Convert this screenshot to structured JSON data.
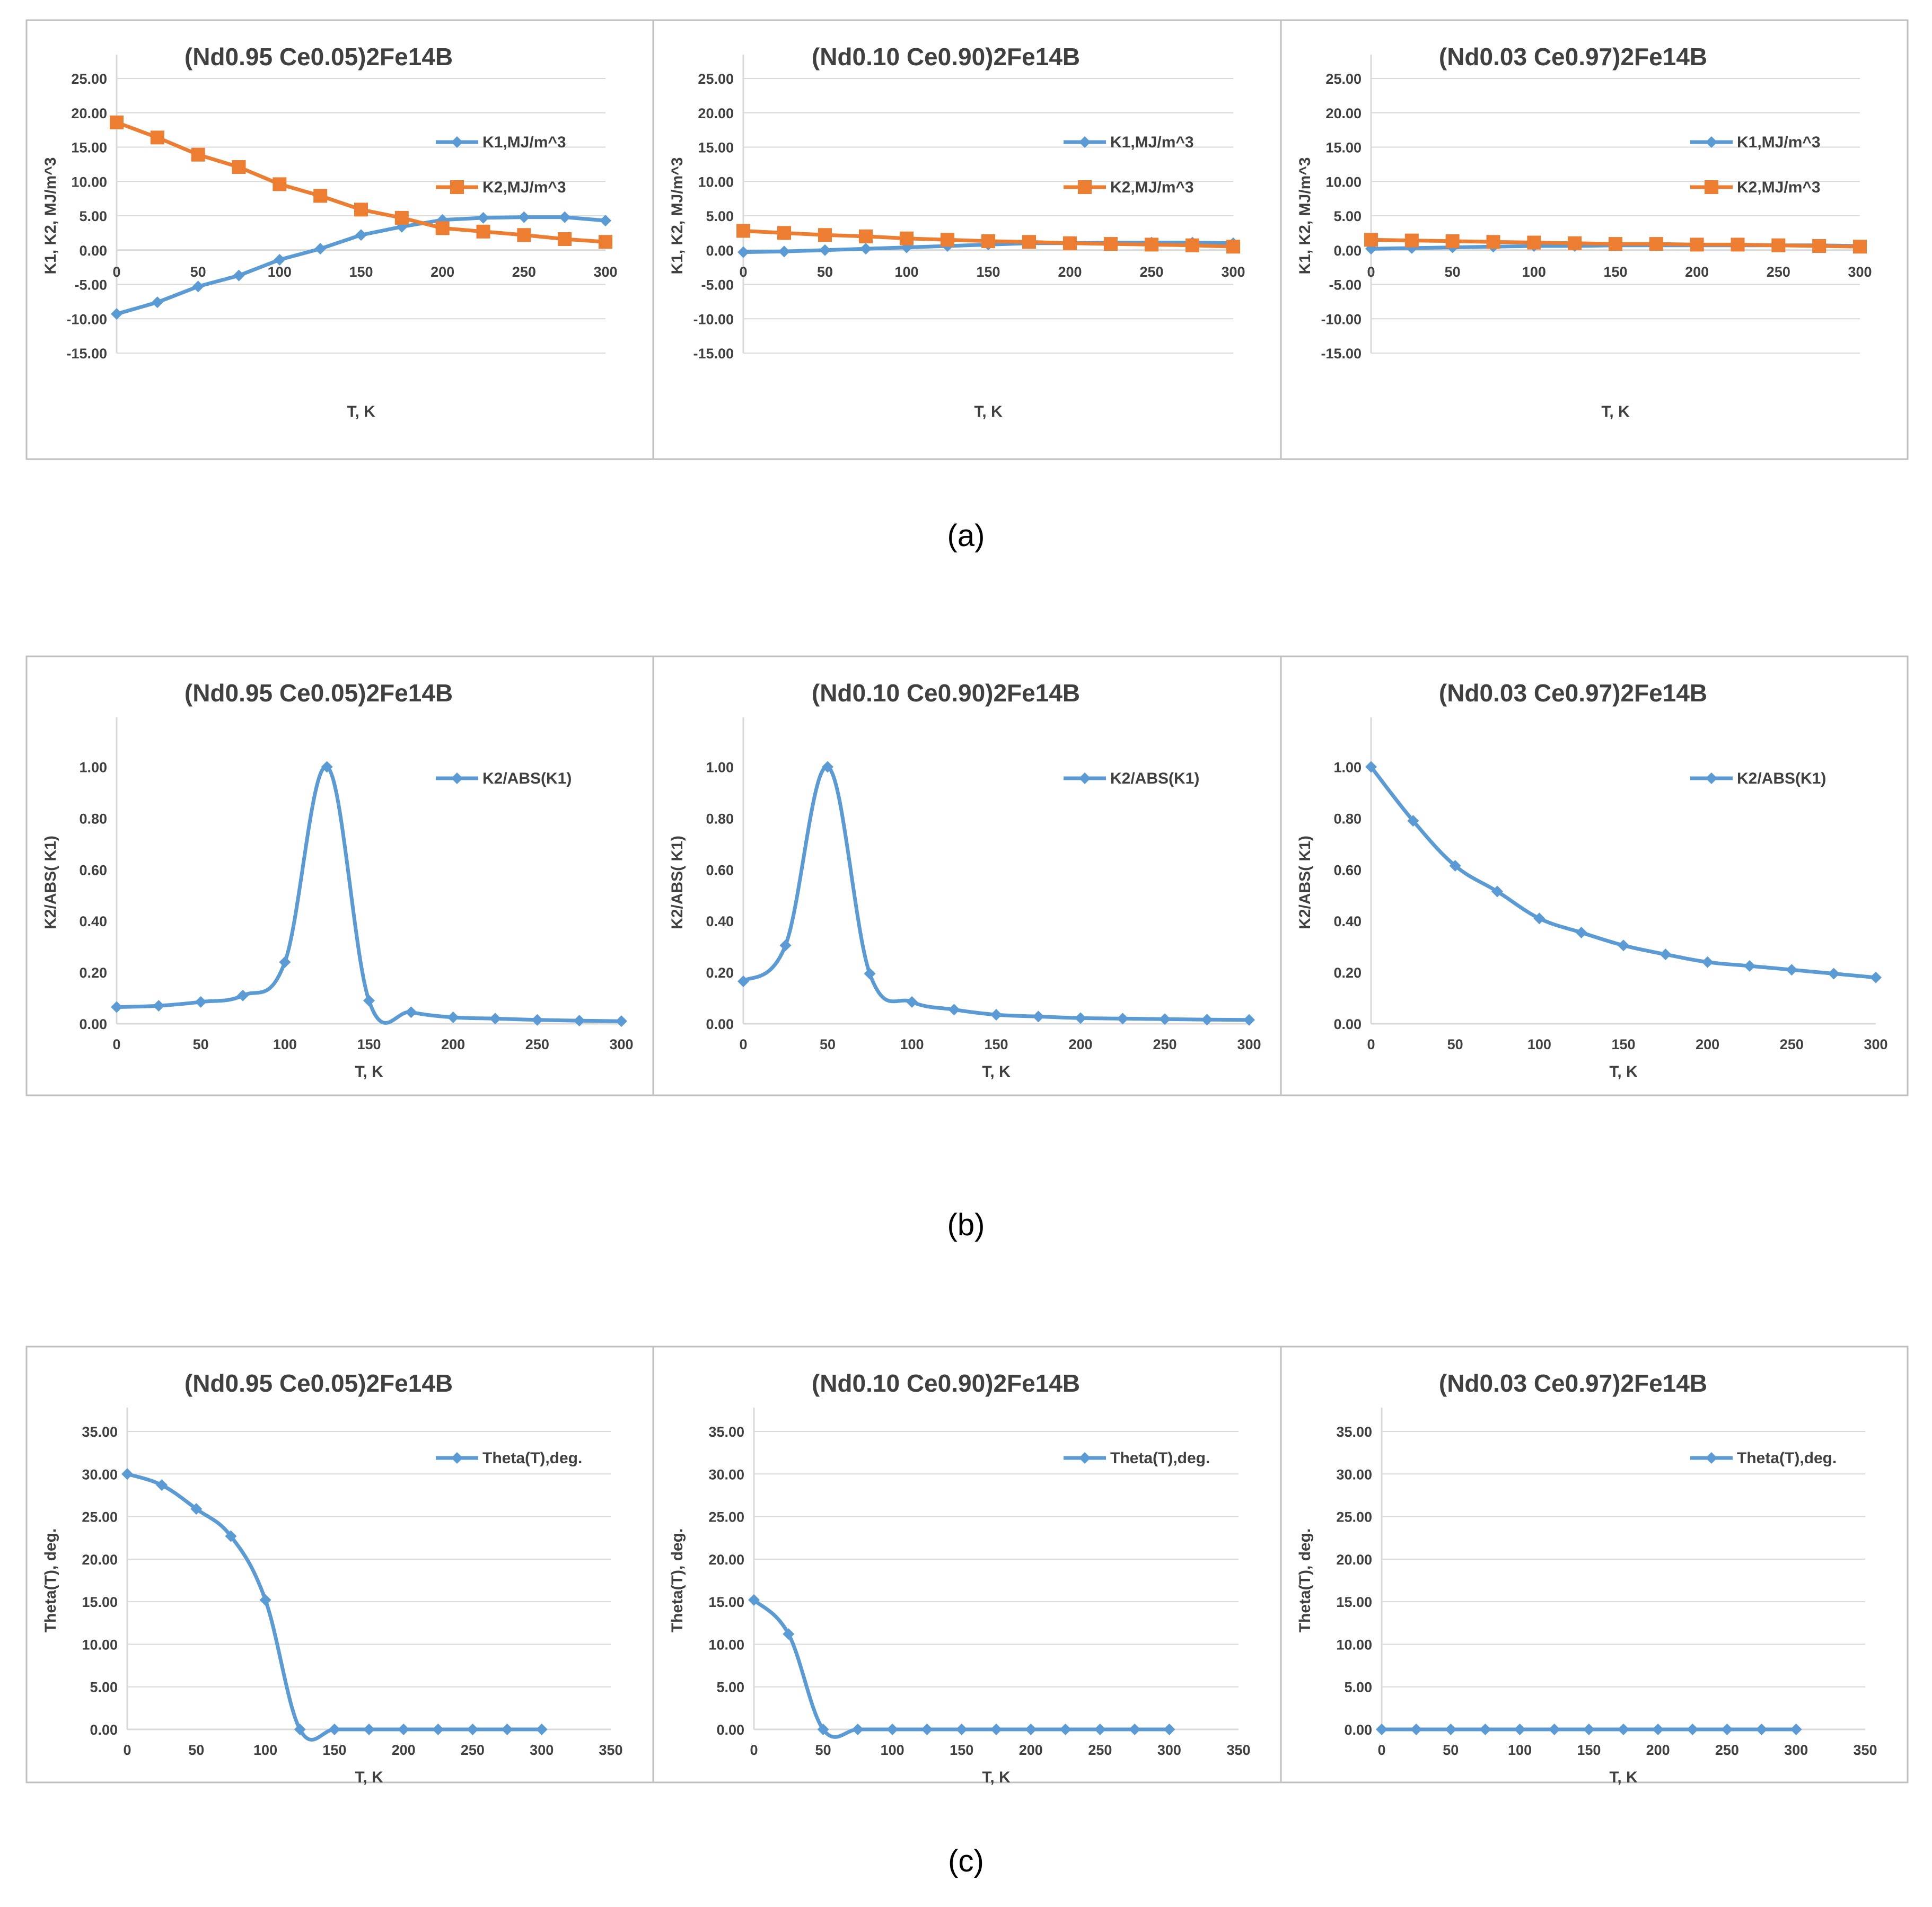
{
  "colors": {
    "k1": "#5B9BD5",
    "k2": "#ED7D31",
    "grid": "#D9D9D9",
    "frame": "#BFBFBF",
    "text": "#404040"
  },
  "captions": [
    "(a)",
    "(b)",
    "(c)"
  ],
  "chart_data": [
    {
      "row": 0,
      "col": 0,
      "type": "line",
      "title": "(Nd0.95 Ce0.05)2Fe14B",
      "xlabel": "T, K",
      "ylabel": "K1, K2, MJ/m^3",
      "ylim": [
        -15,
        25
      ],
      "yticks": [
        "-15.00",
        "-10.00",
        "-5.00",
        "0.00",
        "5.00",
        "10.00",
        "15.00",
        "20.00",
        "25.00"
      ],
      "xlim": [
        0,
        300
      ],
      "xticks": [
        "0",
        "50",
        "100",
        "150",
        "200",
        "250",
        "300"
      ],
      "x": [
        0,
        25,
        50,
        75,
        100,
        125,
        150,
        175,
        200,
        225,
        250,
        275,
        300
      ],
      "series": [
        {
          "name": "K1,MJ/m^3",
          "values": [
            -9.3,
            -7.6,
            -5.3,
            -3.7,
            -1.4,
            0.2,
            2.2,
            3.4,
            4.4,
            4.7,
            4.8,
            4.8,
            4.3
          ]
        },
        {
          "name": "K2,MJ/m^3",
          "values": [
            18.6,
            16.4,
            13.9,
            12.1,
            9.6,
            7.9,
            5.9,
            4.7,
            3.2,
            2.7,
            2.2,
            1.6,
            1.2
          ]
        }
      ],
      "legend": "top-right",
      "grid": true
    },
    {
      "row": 0,
      "col": 1,
      "type": "line",
      "title": "(Nd0.10 Ce0.90)2Fe14B",
      "xlabel": "T, K",
      "ylabel": "K1, K2, MJ/m^3",
      "ylim": [
        -15,
        25
      ],
      "yticks": [
        "-15.00",
        "-10.00",
        "-5.00",
        "0.00",
        "5.00",
        "10.00",
        "15.00",
        "20.00",
        "25.00"
      ],
      "xlim": [
        0,
        300
      ],
      "xticks": [
        "0",
        "50",
        "100",
        "150",
        "200",
        "250",
        "300"
      ],
      "x": [
        0,
        25,
        50,
        75,
        100,
        125,
        150,
        175,
        200,
        225,
        250,
        275,
        300
      ],
      "series": [
        {
          "name": "K1,MJ/m^3",
          "values": [
            -0.3,
            -0.2,
            0.0,
            0.2,
            0.4,
            0.6,
            0.8,
            1.0,
            1.0,
            1.1,
            1.1,
            1.1,
            1.0
          ]
        },
        {
          "name": "K2,MJ/m^3",
          "values": [
            2.8,
            2.5,
            2.2,
            2.0,
            1.7,
            1.5,
            1.3,
            1.2,
            1.0,
            0.9,
            0.8,
            0.7,
            0.5
          ]
        }
      ],
      "legend": "top-right",
      "grid": true
    },
    {
      "row": 0,
      "col": 2,
      "type": "line",
      "title": "(Nd0.03 Ce0.97)2Fe14B",
      "xlabel": "T, K",
      "ylabel": "K1, K2, MJ/m^3",
      "ylim": [
        -15,
        25
      ],
      "yticks": [
        "-15.00",
        "-10.00",
        "-5.00",
        "0.00",
        "5.00",
        "10.00",
        "15.00",
        "20.00",
        "25.00"
      ],
      "xlim": [
        0,
        300
      ],
      "xticks": [
        "0",
        "50",
        "100",
        "150",
        "200",
        "250",
        "300"
      ],
      "x": [
        0,
        25,
        50,
        75,
        100,
        125,
        150,
        175,
        200,
        225,
        250,
        275,
        300
      ],
      "series": [
        {
          "name": "K1,MJ/m^3",
          "values": [
            0.2,
            0.3,
            0.4,
            0.5,
            0.6,
            0.6,
            0.7,
            0.7,
            0.7,
            0.7,
            0.7,
            0.7,
            0.6
          ]
        },
        {
          "name": "K2,MJ/m^3",
          "values": [
            1.5,
            1.4,
            1.3,
            1.2,
            1.1,
            1.0,
            0.9,
            0.9,
            0.8,
            0.8,
            0.7,
            0.6,
            0.5
          ]
        }
      ],
      "legend": "top-right",
      "grid": true
    },
    {
      "row": 1,
      "col": 0,
      "type": "line",
      "title": "(Nd0.95 Ce0.05)2Fe14B",
      "xlabel": "T, K",
      "ylabel": "K2/ABS( K1)",
      "ylim": [
        0,
        1.1
      ],
      "yticks": [
        "0.00",
        "0.20",
        "0.40",
        "0.60",
        "0.80",
        "1.00"
      ],
      "xlim": [
        0,
        300
      ],
      "xticks": [
        "0",
        "50",
        "100",
        "150",
        "200",
        "250",
        "300"
      ],
      "x": [
        0,
        25,
        50,
        75,
        100,
        125,
        150,
        175,
        200,
        225,
        250,
        275,
        300
      ],
      "series": [
        {
          "name": "K2/ABS(K1)",
          "values": [
            0.065,
            0.07,
            0.085,
            0.11,
            0.24,
            1.0,
            0.09,
            0.045,
            0.025,
            0.02,
            0.015,
            0.012,
            0.01
          ]
        }
      ],
      "legend": "top-right",
      "grid": false
    },
    {
      "row": 1,
      "col": 1,
      "type": "line",
      "title": "(Nd0.10 Ce0.90)2Fe14B",
      "xlabel": "T, K",
      "ylabel": "K2/ABS( K1)",
      "ylim": [
        0,
        1.1
      ],
      "yticks": [
        "0.00",
        "0.20",
        "0.40",
        "0.60",
        "0.80",
        "1.00"
      ],
      "xlim": [
        0,
        300
      ],
      "xticks": [
        "0",
        "50",
        "100",
        "150",
        "200",
        "250",
        "300"
      ],
      "x": [
        0,
        25,
        50,
        75,
        100,
        125,
        150,
        175,
        200,
        225,
        250,
        275,
        300
      ],
      "series": [
        {
          "name": "K2/ABS(K1)",
          "values": [
            0.165,
            0.305,
            1.0,
            0.195,
            0.085,
            0.055,
            0.035,
            0.028,
            0.022,
            0.02,
            0.018,
            0.016,
            0.015
          ]
        }
      ],
      "legend": "top-right",
      "grid": false
    },
    {
      "row": 1,
      "col": 2,
      "type": "line",
      "title": "(Nd0.03 Ce0.97)2Fe14B",
      "xlabel": "T, K",
      "ylabel": "K2/ABS( K1)",
      "ylim": [
        0,
        1.1
      ],
      "yticks": [
        "0.00",
        "0.20",
        "0.40",
        "0.60",
        "0.80",
        "1.00"
      ],
      "xlim": [
        0,
        300
      ],
      "xticks": [
        "0",
        "50",
        "100",
        "150",
        "200",
        "250",
        "300"
      ],
      "x": [
        0,
        25,
        50,
        75,
        100,
        125,
        150,
        175,
        200,
        225,
        250,
        275,
        300
      ],
      "series": [
        {
          "name": "K2/ABS(K1)",
          "values": [
            1.0,
            0.79,
            0.615,
            0.515,
            0.41,
            0.355,
            0.305,
            0.27,
            0.24,
            0.225,
            0.21,
            0.195,
            0.18
          ]
        }
      ],
      "legend": "top-right",
      "grid": false
    },
    {
      "row": 2,
      "col": 0,
      "type": "line",
      "title": "(Nd0.95 Ce0.05)2Fe14B",
      "xlabel": "T, K",
      "ylabel": "Theta(T), deg.",
      "ylim": [
        0,
        35
      ],
      "yticks": [
        "0.00",
        "5.00",
        "10.00",
        "15.00",
        "20.00",
        "25.00",
        "30.00",
        "35.00"
      ],
      "xlim": [
        0,
        350
      ],
      "xticks": [
        "0",
        "50",
        "100",
        "150",
        "200",
        "250",
        "300",
        "350"
      ],
      "x": [
        0,
        25,
        50,
        75,
        100,
        125,
        150,
        175,
        200,
        225,
        250,
        275,
        300
      ],
      "series": [
        {
          "name": "Theta(T),deg.",
          "values": [
            30.0,
            28.7,
            25.9,
            22.7,
            15.2,
            0,
            0,
            0,
            0,
            0,
            0,
            0,
            0
          ]
        }
      ],
      "legend": "top-right",
      "grid": true
    },
    {
      "row": 2,
      "col": 1,
      "type": "line",
      "title": "(Nd0.10 Ce0.90)2Fe14B",
      "xlabel": "T, K",
      "ylabel": "Theta(T), deg.",
      "ylim": [
        0,
        35
      ],
      "yticks": [
        "0.00",
        "5.00",
        "10.00",
        "15.00",
        "20.00",
        "25.00",
        "30.00",
        "35.00"
      ],
      "xlim": [
        0,
        350
      ],
      "xticks": [
        "0",
        "50",
        "100",
        "150",
        "200",
        "250",
        "300",
        "350"
      ],
      "x": [
        0,
        25,
        50,
        75,
        100,
        125,
        150,
        175,
        200,
        225,
        250,
        275,
        300
      ],
      "series": [
        {
          "name": "Theta(T),deg.",
          "values": [
            15.2,
            11.2,
            0,
            0,
            0,
            0,
            0,
            0,
            0,
            0,
            0,
            0,
            0
          ]
        }
      ],
      "legend": "top-right",
      "grid": true
    },
    {
      "row": 2,
      "col": 2,
      "type": "line",
      "title": "(Nd0.03 Ce0.97)2Fe14B",
      "xlabel": "T, K",
      "ylabel": "Theta(T), deg.",
      "ylim": [
        0,
        35
      ],
      "yticks": [
        "0.00",
        "5.00",
        "10.00",
        "15.00",
        "20.00",
        "25.00",
        "30.00",
        "35.00"
      ],
      "xlim": [
        0,
        350
      ],
      "xticks": [
        "0",
        "50",
        "100",
        "150",
        "200",
        "250",
        "300",
        "350"
      ],
      "x": [
        0,
        25,
        50,
        75,
        100,
        125,
        150,
        175,
        200,
        225,
        250,
        275,
        300
      ],
      "series": [
        {
          "name": "Theta(T),deg.",
          "values": [
            0,
            0,
            0,
            0,
            0,
            0,
            0,
            0,
            0,
            0,
            0,
            0,
            0
          ]
        }
      ],
      "legend": "top-right",
      "grid": true
    }
  ]
}
